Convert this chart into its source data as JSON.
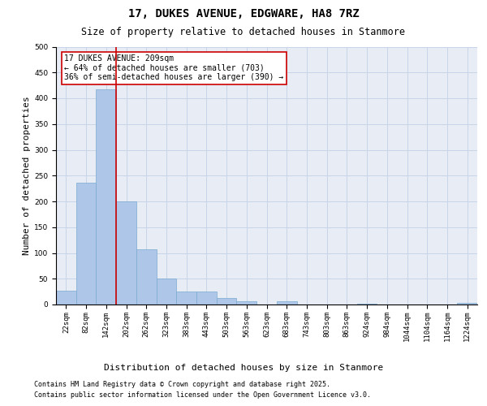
{
  "title_line1": "17, DUKES AVENUE, EDGWARE, HA8 7RZ",
  "title_line2": "Size of property relative to detached houses in Stanmore",
  "xlabel": "Distribution of detached houses by size in Stanmore",
  "ylabel": "Number of detached properties",
  "categories": [
    "22sqm",
    "82sqm",
    "142sqm",
    "202sqm",
    "262sqm",
    "323sqm",
    "383sqm",
    "443sqm",
    "503sqm",
    "563sqm",
    "623sqm",
    "683sqm",
    "743sqm",
    "803sqm",
    "863sqm",
    "924sqm",
    "984sqm",
    "1044sqm",
    "1104sqm",
    "1164sqm",
    "1224sqm"
  ],
  "values": [
    27,
    237,
    418,
    200,
    107,
    50,
    25,
    25,
    13,
    7,
    0,
    7,
    0,
    0,
    0,
    2,
    0,
    0,
    0,
    0,
    3
  ],
  "bar_color": "#aec6e8",
  "bar_edge_color": "#7aaad0",
  "grid_color": "#c8d4e8",
  "background_color": "#e8edf5",
  "annotation_box_color": "#ffffff",
  "annotation_border_color": "#cc0000",
  "ref_line_color": "#cc0000",
  "ref_line_index": 2.5,
  "annotation_text": "17 DUKES AVENUE: 209sqm\n← 64% of detached houses are smaller (703)\n36% of semi-detached houses are larger (390) →",
  "ylim": [
    0,
    500
  ],
  "yticks": [
    0,
    50,
    100,
    150,
    200,
    250,
    300,
    350,
    400,
    450,
    500
  ],
  "footnote_line1": "Contains HM Land Registry data © Crown copyright and database right 2025.",
  "footnote_line2": "Contains public sector information licensed under the Open Government Licence v3.0.",
  "title_fontsize": 10,
  "subtitle_fontsize": 8.5,
  "xlabel_fontsize": 8,
  "ylabel_fontsize": 8,
  "tick_fontsize": 6.5,
  "annotation_fontsize": 7,
  "footnote_fontsize": 6
}
